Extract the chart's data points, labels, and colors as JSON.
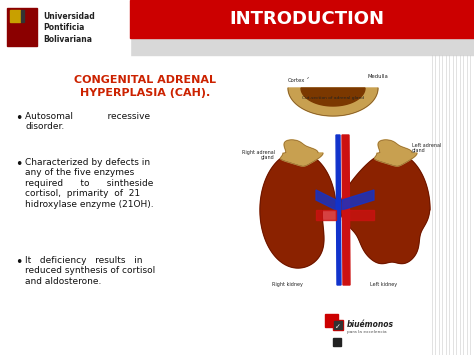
{
  "title": "INTRODUCTION",
  "title_bg": "#cc0000",
  "title_color": "#ffffff",
  "slide_bg": "#e8e8e8",
  "content_bg": "#ffffff",
  "heading_line1": "CONGENITAL ADRENAL",
  "heading_line2": "HYPERPLASIA (CAH).",
  "heading_color": "#cc2200",
  "bullet1_text": "Autosomal            recessive\ndisorder.",
  "bullet2_text": "Characterized by defects in\nany of the five enzymes\nrequired      to      sintheside\ncortisol,  primarity  of  21\nhidroxylase enzyme (21OH).",
  "bullet3_text": "It   deficiency   results   in\nreduced synthesis of cortisol\nand aldosterone.",
  "bullet_color": "#111111",
  "logo_text": "Universidad\nPontificia\nBolivariana",
  "logo_color": "#222222",
  "logo_shield_color": "#8b0000",
  "header_stripe_color": "#d8d8d8",
  "lines_color": "#cccccc",
  "kidney_color": "#8b2200",
  "kidney_dark": "#5a1000",
  "adrenal_outer": "#c8a050",
  "adrenal_inner": "#7b3800",
  "vein_color": "#1133cc",
  "artery_color": "#cc1111",
  "label_color": "#222222",
  "logo2_red": "#cc0000",
  "logo2_dark": "#222222"
}
